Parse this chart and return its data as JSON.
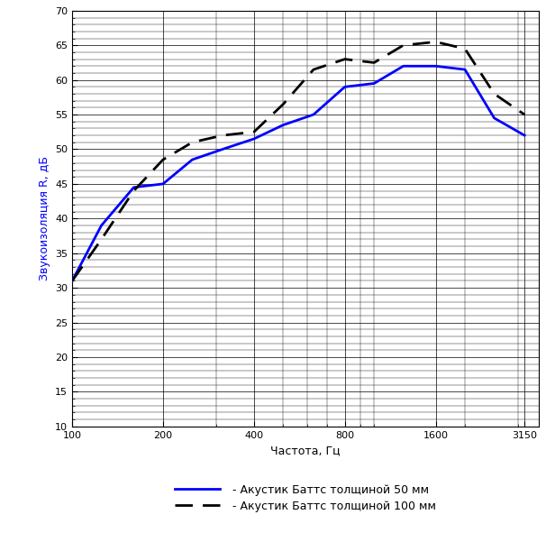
{
  "xlabel": "Частота, Гц",
  "ylabel": "Звукоизоляция R, дБ",
  "x_ticks": [
    100,
    200,
    400,
    800,
    1600,
    3150
  ],
  "x_tick_labels": [
    "100",
    "200",
    "400",
    "800",
    "1600",
    "3150"
  ],
  "ylim": [
    10,
    70
  ],
  "y_ticks": [
    10,
    15,
    20,
    25,
    30,
    35,
    40,
    45,
    50,
    55,
    60,
    65,
    70
  ],
  "blue_x": [
    100,
    125,
    160,
    200,
    250,
    315,
    400,
    500,
    630,
    800,
    1000,
    1250,
    1600,
    2000,
    2500,
    3150
  ],
  "blue_y": [
    31.0,
    39.0,
    44.5,
    45.0,
    48.5,
    50.0,
    51.5,
    53.5,
    55.0,
    59.0,
    59.5,
    62.0,
    62.0,
    61.5,
    54.5,
    52.0
  ],
  "black_x": [
    100,
    125,
    160,
    200,
    250,
    315,
    400,
    500,
    630,
    800,
    1000,
    1250,
    1600,
    2000,
    2500,
    3150
  ],
  "black_y": [
    31.0,
    37.0,
    44.0,
    48.5,
    51.0,
    52.0,
    52.5,
    56.5,
    61.5,
    63.0,
    62.5,
    65.0,
    65.5,
    64.5,
    58.0,
    55.0
  ],
  "blue_color": "#0000FF",
  "black_color": "#000000",
  "grid_major_color": "#000000",
  "grid_minor_color": "#000000",
  "bg_color": "#ffffff",
  "legend_blue": " - Акустик Баттс толщиной 50 мм",
  "legend_black": " - Акустик Баттс толщиной 100 мм",
  "tick_fontsize": 8,
  "label_fontsize": 9,
  "legend_fontsize": 9,
  "linewidth_blue": 2.0,
  "linewidth_black": 2.0
}
